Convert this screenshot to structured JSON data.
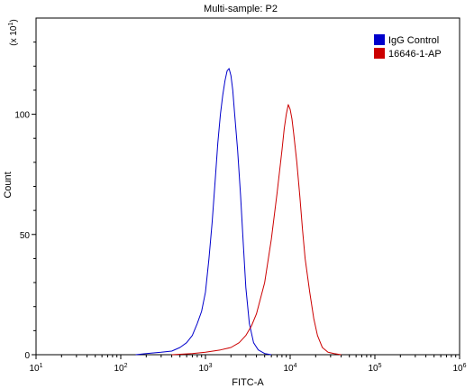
{
  "chart_data": {
    "type": "line",
    "title": "Multi-sample: P2",
    "xlabel": "FITC-A",
    "ylabel": "Count",
    "y_multiplier_label": "(x 10",
    "y_multiplier_exponent": "1",
    "x_scale": "log",
    "xlim": [
      10,
      1000000
    ],
    "ylim": [
      0,
      140
    ],
    "x_ticks": [
      {
        "value": 10,
        "base": "10",
        "exp": "1"
      },
      {
        "value": 100,
        "base": "10",
        "exp": "2"
      },
      {
        "value": 1000,
        "base": "10",
        "exp": "3"
      },
      {
        "value": 10000,
        "base": "10",
        "exp": "4"
      },
      {
        "value": 100000,
        "base": "10",
        "exp": "5"
      },
      {
        "value": 1000000,
        "base": "10",
        "exp": "6"
      }
    ],
    "y_ticks": [
      {
        "value": 0,
        "label": "0"
      },
      {
        "value": 50,
        "label": "50"
      },
      {
        "value": 100,
        "label": "100"
      }
    ],
    "legend_position": "top-right",
    "grid": false,
    "series": [
      {
        "name": "IgG Control",
        "color": "#0000cc",
        "x": [
          150,
          200,
          300,
          400,
          500,
          600,
          700,
          800,
          900,
          1000,
          1100,
          1200,
          1300,
          1400,
          1500,
          1600,
          1700,
          1800,
          1900,
          2000,
          2100,
          2200,
          2400,
          2600,
          2800,
          3000,
          3300,
          3700,
          4200,
          5000,
          6000
        ],
        "y": [
          0,
          0.5,
          1,
          1.5,
          3,
          5,
          8,
          13,
          18,
          26,
          40,
          55,
          72,
          88,
          100,
          108,
          114,
          118,
          119,
          116,
          110,
          101,
          85,
          66,
          46,
          28,
          13,
          5,
          2,
          0.5,
          0
        ]
      },
      {
        "name": "16646-1-AP",
        "color": "#cc0000",
        "x": [
          400,
          700,
          1000,
          1500,
          2000,
          2500,
          3000,
          3500,
          4000,
          5000,
          6000,
          7000,
          8000,
          8500,
          9000,
          9500,
          10000,
          10500,
          11000,
          12000,
          13000,
          14000,
          15000,
          17000,
          19000,
          21000,
          24000,
          28000,
          33000,
          40000
        ],
        "y": [
          0,
          0.5,
          1,
          2,
          3,
          5,
          8,
          12,
          17,
          30,
          48,
          67,
          85,
          94,
          100,
          104,
          102,
          98,
          92,
          80,
          66,
          52,
          40,
          26,
          15,
          8,
          3,
          1,
          0.5,
          0
        ]
      }
    ]
  }
}
